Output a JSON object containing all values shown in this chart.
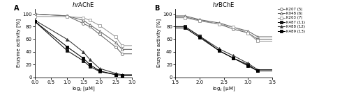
{
  "panel_A_title": "AChE",
  "panel_B_title": "BChE",
  "hr_prefix": "hr",
  "xlabel": "log$_c$ [μM]",
  "ylabel": "Enzyme activity [%]",
  "panel_A_xlim": [
    0.0,
    3.0
  ],
  "panel_A_ylim": [
    0,
    108
  ],
  "panel_B_xlim": [
    1.5,
    3.5
  ],
  "panel_B_ylim": [
    0,
    108
  ],
  "panel_A_xticks": [
    0.0,
    0.5,
    1.0,
    1.5,
    2.0,
    2.5,
    3.0
  ],
  "panel_B_xticks": [
    1.5,
    2.0,
    2.5,
    3.0,
    3.5
  ],
  "yticks": [
    0,
    20,
    40,
    60,
    80,
    100
  ],
  "series_order": [
    "K207",
    "K048",
    "K203",
    "K487",
    "K488",
    "K489"
  ],
  "series_info": {
    "K207": {
      "marker": "o",
      "filled": false,
      "color": "#666666",
      "label": "K207 (5)"
    },
    "K048": {
      "marker": "^",
      "filled": false,
      "color": "#666666",
      "label": "K048 (6)"
    },
    "K203": {
      "marker": "s",
      "filled": false,
      "color": "#999999",
      "label": "K203 (7)"
    },
    "K487": {
      "marker": "s",
      "filled": true,
      "color": "#111111",
      "label": "K487 (11)"
    },
    "K488": {
      "marker": "^",
      "filled": true,
      "color": "#333333",
      "label": "K488 (12)"
    },
    "K489": {
      "marker": "s",
      "filled": true,
      "color": "#000000",
      "label": "K489 (13)"
    }
  },
  "panel_A_data": {
    "K207": {
      "x": [
        0.0,
        1.0,
        1.5,
        1.7,
        2.0,
        2.5,
        2.7
      ],
      "y": [
        100,
        97,
        85,
        80,
        68,
        48,
        37
      ]
    },
    "K048": {
      "x": [
        0.0,
        1.0,
        1.5,
        1.7,
        2.0,
        2.5,
        2.7
      ],
      "y": [
        100,
        97,
        90,
        83,
        73,
        55,
        44
      ]
    },
    "K203": {
      "x": [
        0.0,
        1.0,
        1.5,
        1.7,
        2.0,
        2.5,
        2.7
      ],
      "y": [
        96,
        96,
        94,
        90,
        82,
        64,
        50
      ]
    },
    "K487": {
      "x": [
        0.0,
        1.0,
        1.5,
        1.7,
        2.0,
        2.5,
        2.7
      ],
      "y": [
        88,
        42,
        26,
        17,
        9,
        4,
        3
      ]
    },
    "K488": {
      "x": [
        0.0,
        1.0,
        1.5,
        1.7,
        2.0,
        2.5,
        2.7
      ],
      "y": [
        90,
        60,
        40,
        28,
        14,
        6,
        4
      ]
    },
    "K489": {
      "x": [
        0.0,
        1.0,
        1.5,
        1.7,
        2.0,
        2.5,
        2.7
      ],
      "y": [
        88,
        48,
        30,
        20,
        10,
        4,
        3
      ]
    }
  },
  "panel_B_data": {
    "K207": {
      "x": [
        1.7,
        2.0,
        2.4,
        2.7,
        3.0,
        3.2
      ],
      "y": [
        95,
        90,
        84,
        76,
        70,
        60
      ]
    },
    "K048": {
      "x": [
        1.7,
        2.0,
        2.4,
        2.7,
        3.0,
        3.2
      ],
      "y": [
        97,
        91,
        86,
        79,
        73,
        64
      ]
    },
    "K203": {
      "x": [
        1.7,
        2.0,
        2.4,
        2.7,
        3.0,
        3.2
      ],
      "y": [
        94,
        89,
        84,
        79,
        70,
        57
      ]
    },
    "K487": {
      "x": [
        1.7,
        2.0,
        2.4,
        2.7,
        3.0,
        3.2
      ],
      "y": [
        80,
        65,
        42,
        30,
        20,
        10
      ]
    },
    "K488": {
      "x": [
        1.7,
        2.0,
        2.4,
        2.7,
        3.0,
        3.2
      ],
      "y": [
        80,
        65,
        45,
        34,
        22,
        12
      ]
    },
    "K489": {
      "x": [
        1.7,
        2.0,
        2.4,
        2.7,
        3.0,
        3.2
      ],
      "y": [
        78,
        63,
        42,
        30,
        18,
        10
      ]
    }
  }
}
